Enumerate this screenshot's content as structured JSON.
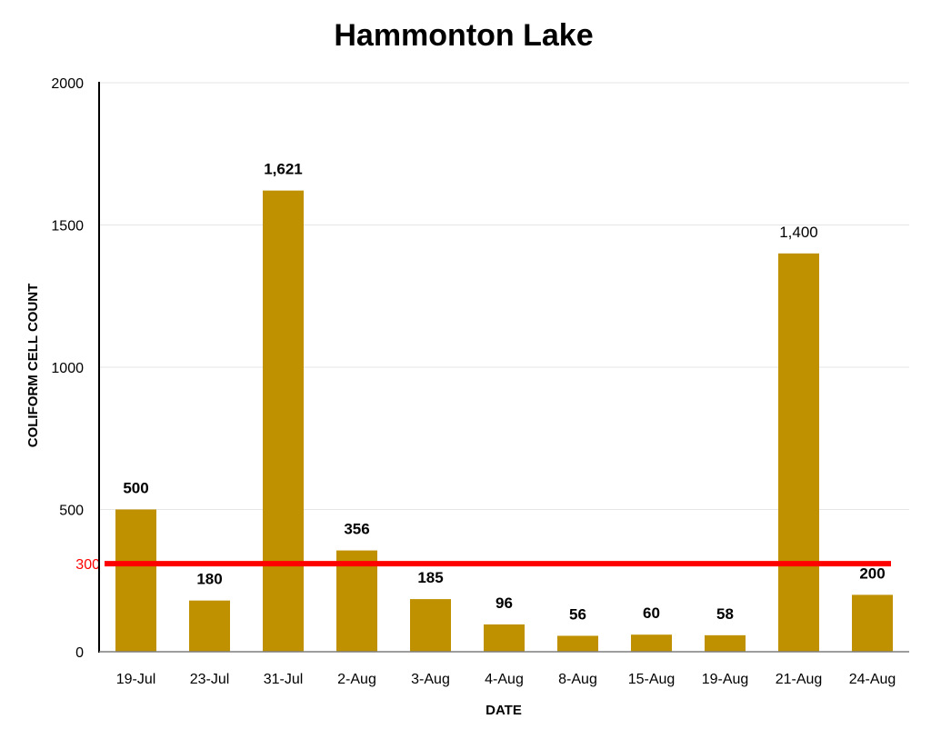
{
  "chart_data": {
    "type": "bar",
    "title": "Hammonton Lake",
    "xlabel": "DATE",
    "ylabel": "COLIFORM CELL COUNT",
    "categories": [
      "19-Jul",
      "23-Jul",
      "31-Jul",
      "2-Aug",
      "3-Aug",
      "4-Aug",
      "8-Aug",
      "15-Aug",
      "19-Aug",
      "21-Aug",
      "24-Aug"
    ],
    "values": [
      500,
      180,
      1621,
      356,
      185,
      96,
      56,
      60,
      58,
      1400,
      200
    ],
    "data_labels": [
      "500",
      "180",
      "1,621",
      "356",
      "185",
      "96",
      "56",
      "60",
      "58",
      "1,400",
      "200"
    ],
    "ylim": [
      0,
      2000
    ],
    "yticks": [
      {
        "value": 0,
        "label": "0"
      },
      {
        "value": 500,
        "label": "500"
      },
      {
        "value": 1000,
        "label": "1000"
      },
      {
        "value": 1500,
        "label": "1500"
      },
      {
        "value": 2000,
        "label": "2000"
      }
    ],
    "reference_line": {
      "value": 300,
      "label": "300",
      "color": "#ff0000"
    },
    "bar_color": "#bf9000",
    "grid": true,
    "legend": "none"
  }
}
